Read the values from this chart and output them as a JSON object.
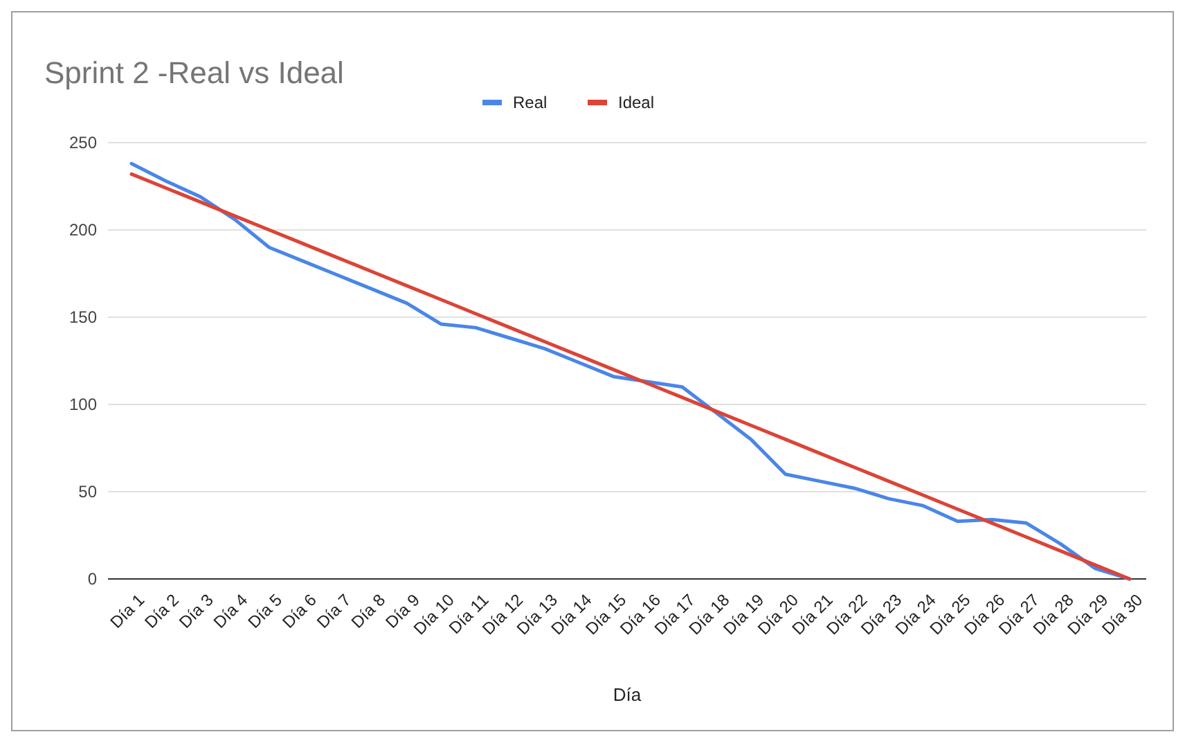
{
  "chart_data": {
    "type": "line",
    "title": "Sprint 2 -Real vs Ideal",
    "xlabel": "Día",
    "categories": [
      "Día 1",
      "Día 2",
      "Día 3",
      "Día 4",
      "Día 5",
      "Día 6",
      "Día 7",
      "Día 8",
      "Día 9",
      "Día 10",
      "Día 11",
      "Día 12",
      "Día 13",
      "Día 14",
      "Día 15",
      "Día 16",
      "Día 17",
      "Día 18",
      "Día 19",
      "Día 20",
      "Día 21",
      "Día 22",
      "Día 23",
      "Día 24",
      "Día 25",
      "Día 26",
      "Día 27",
      "Día 28",
      "Día 29",
      "Día 30"
    ],
    "series": [
      {
        "name": "Real",
        "color": "#4a86e8",
        "values": [
          238,
          228,
          219,
          206,
          190,
          182,
          174,
          166,
          158,
          146,
          144,
          138,
          132,
          124,
          116,
          113,
          110,
          95,
          80,
          60,
          56,
          52,
          46,
          42,
          33,
          34,
          32,
          20,
          6,
          0
        ]
      },
      {
        "name": "Ideal",
        "color": "#db4437",
        "values": [
          232,
          224,
          216,
          208,
          200,
          192,
          184,
          176,
          168,
          160,
          152,
          144,
          136,
          128,
          120,
          112,
          104,
          96,
          88,
          80,
          72,
          64,
          56,
          48,
          40,
          32,
          24,
          16,
          8,
          0
        ]
      }
    ],
    "ylim": [
      0,
      250
    ],
    "yticks": [
      0,
      50,
      100,
      150,
      200,
      250
    ],
    "grid": "y",
    "legend": "top",
    "marker": "none",
    "line_style": "solid"
  }
}
